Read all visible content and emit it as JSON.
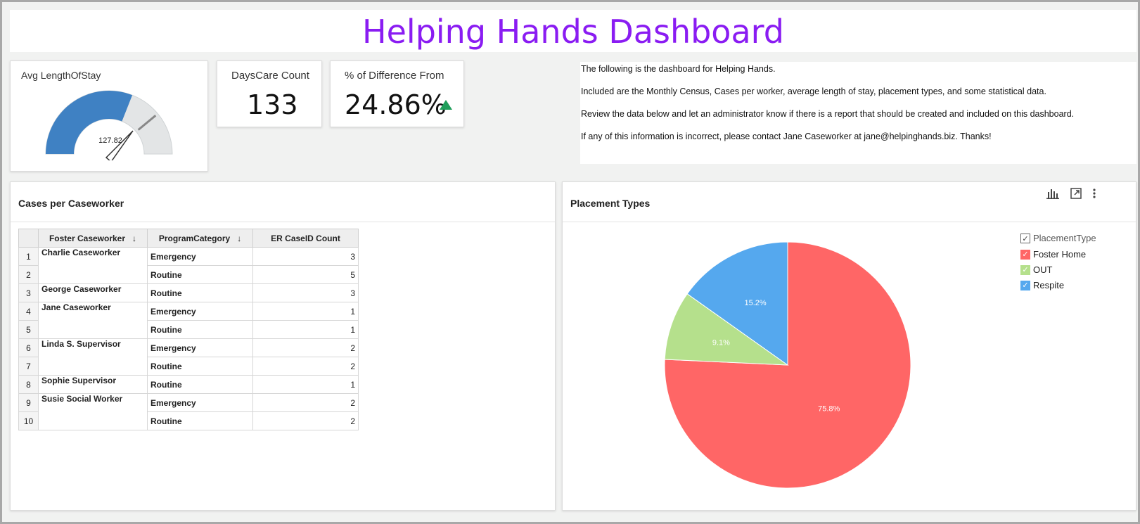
{
  "header": {
    "title": "Helping Hands Dashboard"
  },
  "kpis": {
    "avg_length_of_stay": {
      "label": "Avg LengthOfStay",
      "value": "127.82",
      "gauge_fraction": 0.62
    },
    "days_care_count": {
      "label": "DaysCare Count",
      "value": "133"
    },
    "pct_difference": {
      "label": "% of Difference From",
      "value": "24.86%"
    }
  },
  "notes": [
    "The following is the dashboard for Helping Hands.",
    "Included are the Monthly Census, Cases per worker, average length of stay, placement types, and some statistical data.",
    "Review the data below and let an administrator know if there is a report that should be created and included on this dashboard.",
    "If any of this information is incorrect, please contact Jane Caseworker at jane@helpinghands.biz. Thanks!"
  ],
  "cases_panel": {
    "title": "Cases per Caseworker",
    "columns": [
      "Foster Caseworker",
      "ProgramCategory",
      "ER CaseID Count"
    ],
    "rows": [
      {
        "n": "1",
        "worker": "Charlie Caseworker",
        "category": "Emergency",
        "count": "3"
      },
      {
        "n": "2",
        "worker": "",
        "category": "Routine",
        "count": "5"
      },
      {
        "n": "3",
        "worker": "George Caseworker",
        "category": "Routine",
        "count": "3"
      },
      {
        "n": "4",
        "worker": "Jane Caseworker",
        "category": "Emergency",
        "count": "1"
      },
      {
        "n": "5",
        "worker": "",
        "category": "Routine",
        "count": "1"
      },
      {
        "n": "6",
        "worker": "Linda S. Supervisor",
        "category": "Emergency",
        "count": "2"
      },
      {
        "n": "7",
        "worker": "",
        "category": "Routine",
        "count": "2"
      },
      {
        "n": "8",
        "worker": "Sophie Supervisor",
        "category": "Routine",
        "count": "1"
      },
      {
        "n": "9",
        "worker": "Susie Social Worker",
        "category": "Emergency",
        "count": "2"
      },
      {
        "n": "10",
        "worker": "",
        "category": "Routine",
        "count": "2"
      }
    ]
  },
  "placement_panel": {
    "title": "Placement Types",
    "legend_title": "PlacementType",
    "icons": [
      "bar-chart-icon",
      "expand-icon",
      "more-vertical-icon"
    ]
  },
  "chart_data": {
    "type": "pie",
    "title": "Placement Types",
    "legend_title": "PlacementType",
    "legend_position": "top-right",
    "slices": [
      {
        "name": "Foster Home",
        "value": 75.8,
        "label": "75.8%",
        "color": "#ff6666"
      },
      {
        "name": "OUT",
        "value": 9.1,
        "label": "9.1%",
        "color": "#b5e08c"
      },
      {
        "name": "Respite",
        "value": 15.2,
        "label": "15.2%",
        "color": "#55a8ee"
      }
    ]
  },
  "colors": {
    "title": "#8a1cf2",
    "gauge": "#3f81c3",
    "up_arrow": "#1e9e5a"
  }
}
